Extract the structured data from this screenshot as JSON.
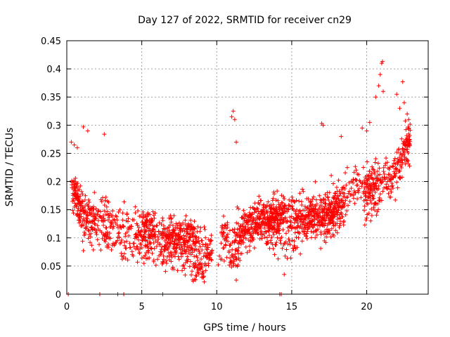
{
  "chart_data": {
    "type": "scatter",
    "title": "Day 127 of 2022, SRMTID for receiver cn29",
    "xlabel": "GPS time / hours",
    "ylabel": "SRMTID / TECUs",
    "xlim": [
      0,
      24.1
    ],
    "ylim": [
      0,
      0.45
    ],
    "x_ticks": [
      0,
      5,
      10,
      15,
      20
    ],
    "x_tick_labels": [
      "0",
      "5",
      "10",
      "15",
      "20"
    ],
    "y_ticks": [
      0,
      0.05,
      0.1,
      0.15,
      0.2,
      0.25,
      0.3,
      0.35,
      0.4,
      0.45
    ],
    "y_tick_labels": [
      "0",
      "0.05",
      "0.1",
      "0.15",
      "0.2",
      "0.25",
      "0.3",
      "0.35",
      "0.4",
      "0.45"
    ],
    "grid": true,
    "marker": "+",
    "color": "#ff0000",
    "x_range": [
      0,
      22.9
    ],
    "n_points": 2200,
    "seed": 12345,
    "trend": [
      {
        "x": 0.0,
        "y": 0.19
      },
      {
        "x": 0.5,
        "y": 0.17
      },
      {
        "x": 1.5,
        "y": 0.13
      },
      {
        "x": 3.0,
        "y": 0.125
      },
      {
        "x": 4.5,
        "y": 0.12
      },
      {
        "x": 6.0,
        "y": 0.105
      },
      {
        "x": 7.5,
        "y": 0.1
      },
      {
        "x": 9.0,
        "y": 0.08
      },
      {
        "x": 10.0,
        "y": 0.085
      },
      {
        "x": 11.5,
        "y": 0.11
      },
      {
        "x": 13.0,
        "y": 0.12
      },
      {
        "x": 14.5,
        "y": 0.12
      },
      {
        "x": 16.0,
        "y": 0.13
      },
      {
        "x": 17.5,
        "y": 0.15
      },
      {
        "x": 19.0,
        "y": 0.17
      },
      {
        "x": 20.5,
        "y": 0.2
      },
      {
        "x": 21.5,
        "y": 0.21
      },
      {
        "x": 22.5,
        "y": 0.25
      },
      {
        "x": 22.9,
        "y": 0.27
      }
    ],
    "spread": 0.045,
    "outliers": [
      {
        "x": 0.3,
        "y": 0.27
      },
      {
        "x": 0.5,
        "y": 0.265
      },
      {
        "x": 0.7,
        "y": 0.26
      },
      {
        "x": 1.1,
        "y": 0.297
      },
      {
        "x": 1.4,
        "y": 0.29
      },
      {
        "x": 2.5,
        "y": 0.284
      },
      {
        "x": 11.1,
        "y": 0.325
      },
      {
        "x": 11.0,
        "y": 0.315
      },
      {
        "x": 11.2,
        "y": 0.31
      },
      {
        "x": 11.3,
        "y": 0.27
      },
      {
        "x": 17.0,
        "y": 0.303
      },
      {
        "x": 17.1,
        "y": 0.3
      },
      {
        "x": 18.3,
        "y": 0.28
      },
      {
        "x": 19.7,
        "y": 0.295
      },
      {
        "x": 20.0,
        "y": 0.29
      },
      {
        "x": 20.2,
        "y": 0.305
      },
      {
        "x": 20.6,
        "y": 0.35
      },
      {
        "x": 20.8,
        "y": 0.37
      },
      {
        "x": 20.9,
        "y": 0.39
      },
      {
        "x": 21.0,
        "y": 0.41
      },
      {
        "x": 21.05,
        "y": 0.413
      },
      {
        "x": 21.1,
        "y": 0.36
      },
      {
        "x": 22.0,
        "y": 0.355
      },
      {
        "x": 22.2,
        "y": 0.33
      },
      {
        "x": 22.4,
        "y": 0.377
      },
      {
        "x": 22.5,
        "y": 0.34
      },
      {
        "x": 22.7,
        "y": 0.32
      },
      {
        "x": 22.8,
        "y": 0.31
      },
      {
        "x": 9.0,
        "y": 0.03
      },
      {
        "x": 11.3,
        "y": 0.025
      },
      {
        "x": 14.5,
        "y": 0.035
      }
    ],
    "zero_points_x": [
      0.1,
      2.2,
      3.4,
      3.8,
      6.4,
      14.2,
      14.3
    ]
  }
}
